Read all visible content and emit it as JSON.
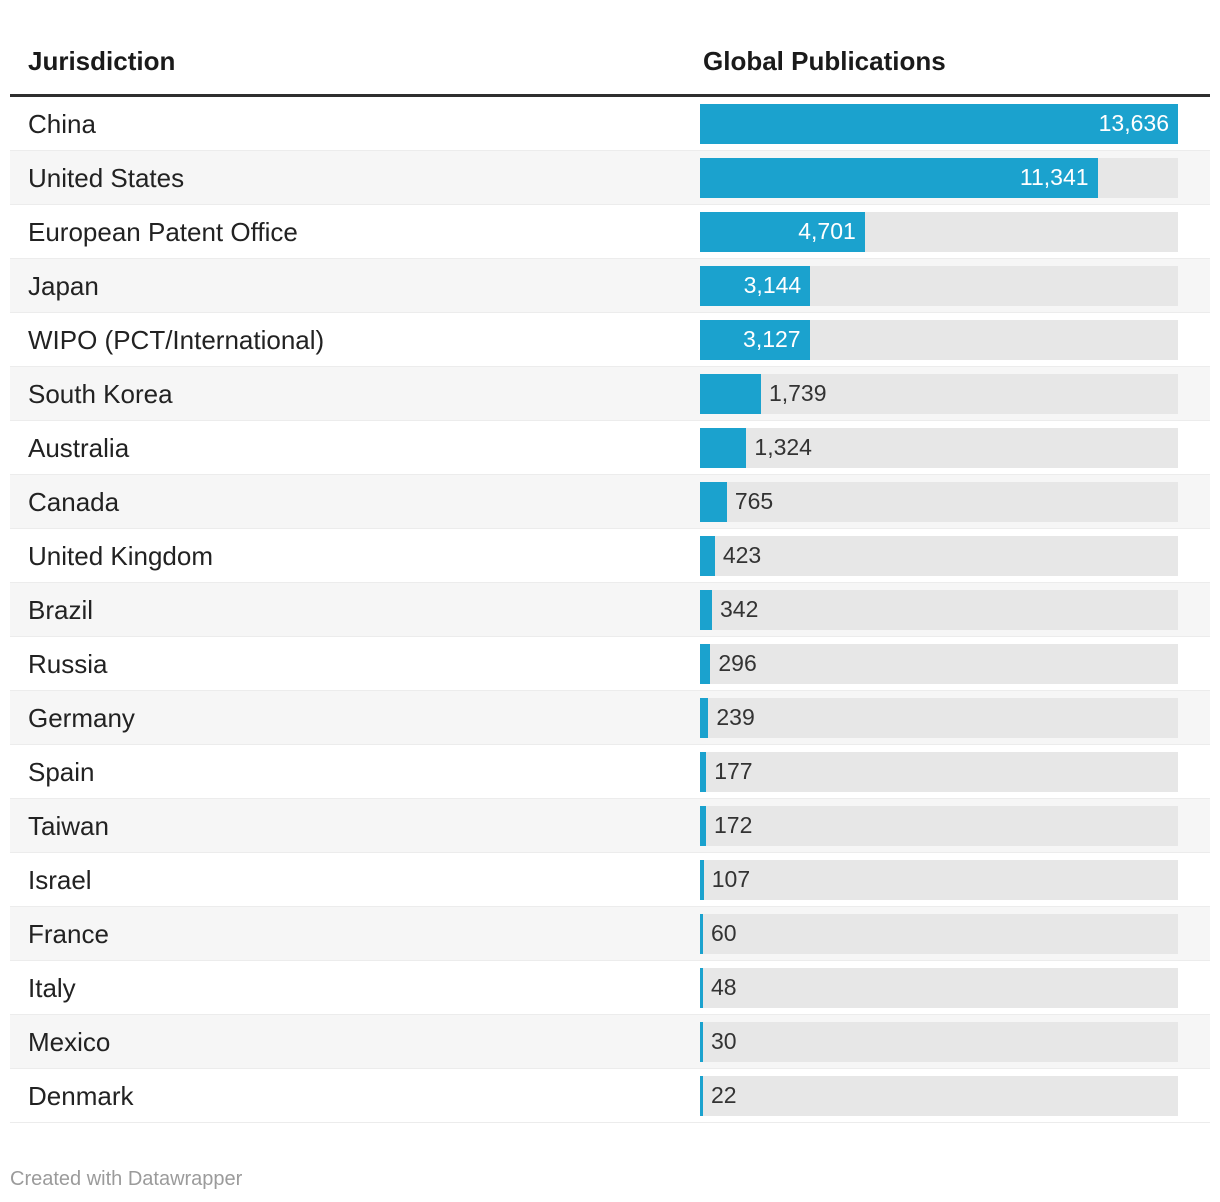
{
  "header": {
    "columns": [
      "Jurisdiction",
      "Global Publications"
    ]
  },
  "chart_data": {
    "type": "bar",
    "orientation": "horizontal",
    "title": "",
    "xlabel": "Jurisdiction",
    "ylabel": "Global Publications",
    "xlim": [
      0,
      13636
    ],
    "grid": false,
    "legend": "none",
    "categories": [
      "China",
      "United States",
      "European Patent Office",
      "Japan",
      "WIPO (PCT/International)",
      "South Korea",
      "Australia",
      "Canada",
      "United Kingdom",
      "Brazil",
      "Russia",
      "Germany",
      "Spain",
      "Taiwan",
      "Israel",
      "France",
      "Italy",
      "Mexico",
      "Denmark"
    ],
    "values": [
      13636,
      11341,
      4701,
      3144,
      3127,
      1739,
      1324,
      765,
      423,
      342,
      296,
      239,
      177,
      172,
      107,
      60,
      48,
      30,
      22
    ],
    "value_labels": [
      "13,636",
      "11,341",
      "4,701",
      "3,144",
      "3,127",
      "1,739",
      "1,324",
      "765",
      "423",
      "342",
      "296",
      "239",
      "177",
      "172",
      "107",
      "60",
      "48",
      "30",
      "22"
    ]
  },
  "colors": {
    "bar": "#1ba2ce",
    "track": "#e7e7e7",
    "alt_row": "#f6f6f6",
    "value_inside": "#ffffff",
    "value_outside": "#333333",
    "header_rule": "#2e2e2e"
  },
  "footer": {
    "attribution": "Created with Datawrapper"
  }
}
